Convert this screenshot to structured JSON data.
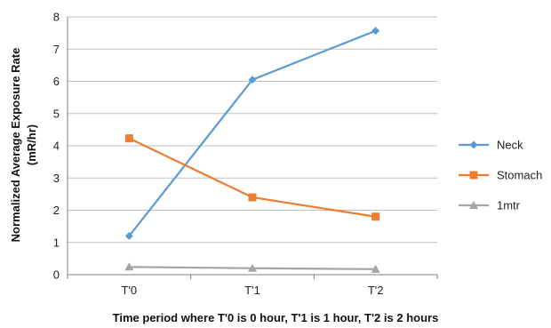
{
  "chart_data": {
    "type": "line",
    "title": "",
    "xlabel": "Time period where T'0 is 0 hour, T'1 is 1 hour, T'2 is 2 hours",
    "ylabel_lines": [
      "Normalized Average Exposure Rate",
      "(mR/hr)"
    ],
    "categories": [
      "T'0",
      "T'1",
      "T'2"
    ],
    "ylim": [
      0,
      8
    ],
    "yticks": [
      "0",
      "1",
      "2",
      "3",
      "4",
      "5",
      "6",
      "7",
      "8"
    ],
    "grid": true,
    "legend_position": "right",
    "series": [
      {
        "name": "Neck",
        "values": [
          1.2,
          6.05,
          7.57
        ],
        "color": "#5B9BD5",
        "marker": "diamond"
      },
      {
        "name": "Stomach",
        "values": [
          4.23,
          2.4,
          1.8
        ],
        "color": "#ED7D31",
        "marker": "square"
      },
      {
        "name": "1mtr",
        "values": [
          0.24,
          0.2,
          0.17
        ],
        "color": "#A5A5A5",
        "marker": "triangle"
      }
    ]
  }
}
